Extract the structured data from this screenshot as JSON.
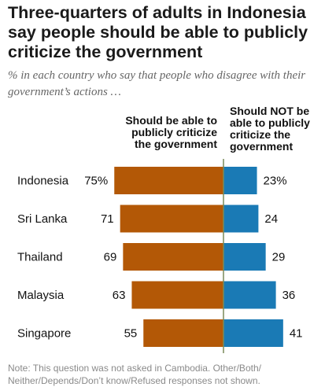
{
  "title": "Three-quarters of adults in Indonesia say people should be able to publicly criticize the government",
  "subtitle": "% in each country who say that people who disagree with their government’s actions …",
  "note": "Note: This question was not asked in Cambodia. Other/Both/ Neither/Depends/Don’t know/Refused responses not shown.",
  "chart_data": {
    "type": "bar",
    "orientation": "diverging-horizontal",
    "categories": [
      "Indonesia",
      "Sri Lanka",
      "Thailand",
      "Malaysia",
      "Singapore"
    ],
    "series": [
      {
        "name": "Should be able to publicly criticize the government",
        "header_lines": [
          "Should be able to",
          "publicly criticize",
          "the government"
        ],
        "values": [
          75,
          71,
          69,
          63,
          55
        ],
        "labels": [
          "75%",
          "71",
          "69",
          "63",
          "55"
        ],
        "color": "#b35806",
        "side": "left"
      },
      {
        "name": "Should NOT be able to publicly criticize the government",
        "header_lines": [
          "Should NOT be",
          "able to publicly",
          "criticize the",
          "government"
        ],
        "values": [
          23,
          24,
          29,
          36,
          41
        ],
        "labels": [
          "23%",
          "24",
          "29",
          "36",
          "41"
        ],
        "color": "#1a7ab5",
        "side": "right"
      }
    ],
    "divider_color": "#7a8a5a"
  }
}
